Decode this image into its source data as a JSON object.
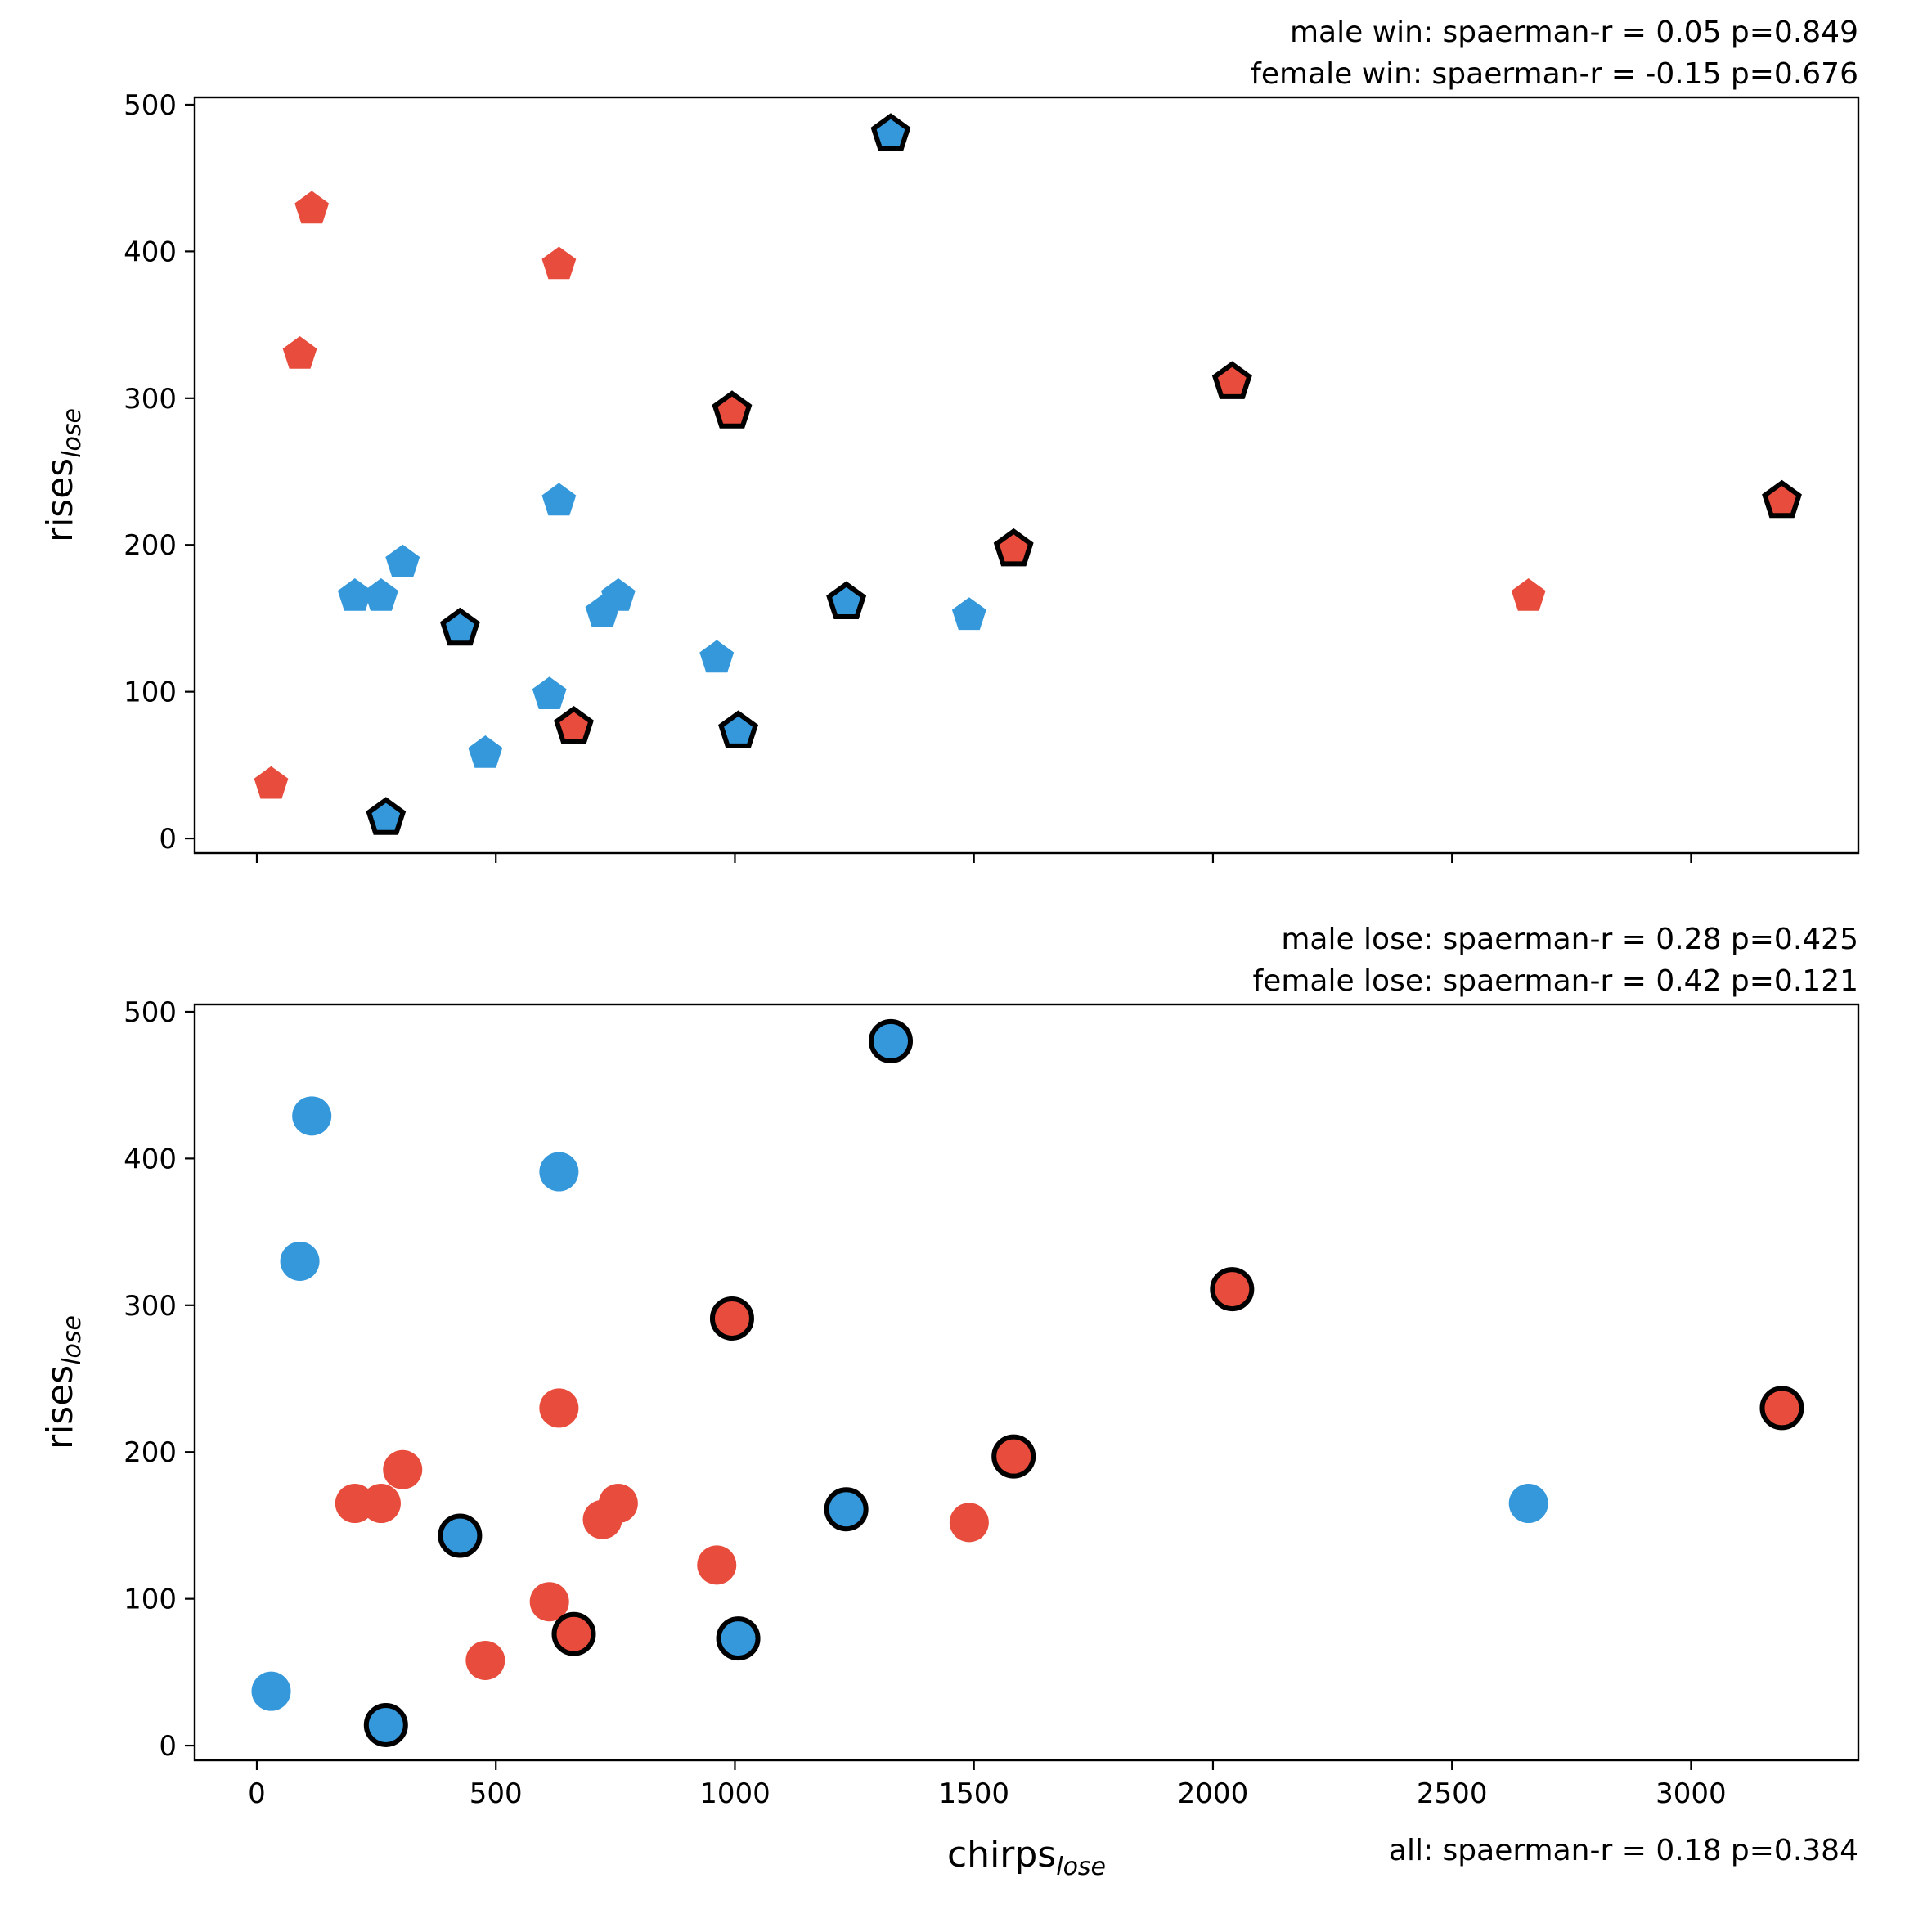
{
  "colors": {
    "red": "#e74c3c",
    "blue": "#3498db",
    "edge": "#000000"
  },
  "chart_data": [
    {
      "type": "scatter",
      "panel": "top",
      "marker": "pentagon",
      "xlabel_main": "",
      "xlabel_sub": "",
      "ylabel_main": "rises",
      "ylabel_sub": "lose",
      "xlim": [
        -130,
        3350
      ],
      "ylim": [
        -10,
        505
      ],
      "xticks": [
        0,
        500,
        1000,
        1500,
        2000,
        2500,
        3000
      ],
      "xtick_labels_visible": false,
      "yticks": [
        0,
        100,
        200,
        300,
        400,
        500
      ],
      "stats": [
        "male win: spaerman-r = 0.05 p=0.849",
        "female win: spaerman-r = -0.15 p=0.676"
      ],
      "grid": false,
      "points": [
        {
          "x": 30,
          "y": 37,
          "color": "red",
          "outlined": false
        },
        {
          "x": 90,
          "y": 330,
          "color": "red",
          "outlined": false
        },
        {
          "x": 115,
          "y": 429,
          "color": "red",
          "outlined": false
        },
        {
          "x": 205,
          "y": 165,
          "color": "blue",
          "outlined": false
        },
        {
          "x": 260,
          "y": 165,
          "color": "blue",
          "outlined": false
        },
        {
          "x": 270,
          "y": 14,
          "color": "blue",
          "outlined": true
        },
        {
          "x": 305,
          "y": 188,
          "color": "blue",
          "outlined": false
        },
        {
          "x": 425,
          "y": 143,
          "color": "blue",
          "outlined": true
        },
        {
          "x": 478,
          "y": 58,
          "color": "blue",
          "outlined": false
        },
        {
          "x": 612,
          "y": 98,
          "color": "blue",
          "outlined": false
        },
        {
          "x": 632,
          "y": 230,
          "color": "blue",
          "outlined": false
        },
        {
          "x": 632,
          "y": 391,
          "color": "red",
          "outlined": false
        },
        {
          "x": 663,
          "y": 76,
          "color": "red",
          "outlined": true
        },
        {
          "x": 723,
          "y": 154,
          "color": "blue",
          "outlined": false
        },
        {
          "x": 756,
          "y": 165,
          "color": "blue",
          "outlined": false
        },
        {
          "x": 962,
          "y": 123,
          "color": "blue",
          "outlined": false
        },
        {
          "x": 994,
          "y": 291,
          "color": "red",
          "outlined": true
        },
        {
          "x": 1007,
          "y": 73,
          "color": "blue",
          "outlined": true
        },
        {
          "x": 1233,
          "y": 161,
          "color": "blue",
          "outlined": true
        },
        {
          "x": 1326,
          "y": 480,
          "color": "blue",
          "outlined": true
        },
        {
          "x": 1490,
          "y": 152,
          "color": "blue",
          "outlined": false
        },
        {
          "x": 1583,
          "y": 197,
          "color": "red",
          "outlined": true
        },
        {
          "x": 2040,
          "y": 311,
          "color": "red",
          "outlined": true
        },
        {
          "x": 2660,
          "y": 165,
          "color": "red",
          "outlined": false
        },
        {
          "x": 3190,
          "y": 230,
          "color": "red",
          "outlined": true
        }
      ]
    },
    {
      "type": "scatter",
      "panel": "bottom",
      "marker": "circle",
      "xlabel_main": "chirps",
      "xlabel_sub": "lose",
      "ylabel_main": "rises",
      "ylabel_sub": "lose",
      "xlim": [
        -130,
        3350
      ],
      "ylim": [
        -10,
        505
      ],
      "xticks": [
        0,
        500,
        1000,
        1500,
        2000,
        2500,
        3000
      ],
      "xtick_labels_visible": true,
      "yticks": [
        0,
        100,
        200,
        300,
        400,
        500
      ],
      "stats": [
        "male lose: spaerman-r = 0.28 p=0.425",
        "female lose: spaerman-r = 0.42 p=0.121"
      ],
      "footer": "all: spaerman-r = 0.18 p=0.384",
      "grid": false,
      "points": [
        {
          "x": 30,
          "y": 37,
          "color": "blue",
          "outlined": false
        },
        {
          "x": 90,
          "y": 330,
          "color": "blue",
          "outlined": false
        },
        {
          "x": 115,
          "y": 429,
          "color": "blue",
          "outlined": false
        },
        {
          "x": 205,
          "y": 165,
          "color": "red",
          "outlined": false
        },
        {
          "x": 260,
          "y": 165,
          "color": "red",
          "outlined": false
        },
        {
          "x": 270,
          "y": 14,
          "color": "blue",
          "outlined": true
        },
        {
          "x": 305,
          "y": 188,
          "color": "red",
          "outlined": false
        },
        {
          "x": 425,
          "y": 143,
          "color": "blue",
          "outlined": true
        },
        {
          "x": 478,
          "y": 58,
          "color": "red",
          "outlined": false
        },
        {
          "x": 612,
          "y": 98,
          "color": "red",
          "outlined": false
        },
        {
          "x": 632,
          "y": 230,
          "color": "red",
          "outlined": false
        },
        {
          "x": 632,
          "y": 391,
          "color": "blue",
          "outlined": false
        },
        {
          "x": 663,
          "y": 76,
          "color": "red",
          "outlined": true
        },
        {
          "x": 723,
          "y": 154,
          "color": "red",
          "outlined": false
        },
        {
          "x": 756,
          "y": 165,
          "color": "red",
          "outlined": false
        },
        {
          "x": 962,
          "y": 123,
          "color": "red",
          "outlined": false
        },
        {
          "x": 994,
          "y": 291,
          "color": "red",
          "outlined": true
        },
        {
          "x": 1007,
          "y": 73,
          "color": "blue",
          "outlined": true
        },
        {
          "x": 1233,
          "y": 161,
          "color": "blue",
          "outlined": true
        },
        {
          "x": 1326,
          "y": 480,
          "color": "blue",
          "outlined": true
        },
        {
          "x": 1490,
          "y": 152,
          "color": "red",
          "outlined": false
        },
        {
          "x": 1583,
          "y": 197,
          "color": "red",
          "outlined": true
        },
        {
          "x": 2040,
          "y": 311,
          "color": "red",
          "outlined": true
        },
        {
          "x": 2660,
          "y": 165,
          "color": "blue",
          "outlined": false
        },
        {
          "x": 3190,
          "y": 230,
          "color": "red",
          "outlined": true
        }
      ]
    }
  ]
}
